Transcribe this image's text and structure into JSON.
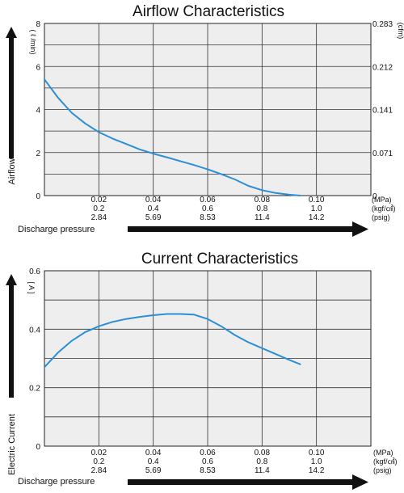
{
  "chart_data": [
    {
      "type": "line",
      "title": "Airflow Characteristics",
      "ylabel": "Airflow",
      "y_unit": "( ℓ /min)",
      "y2_unit": "(cfm)",
      "xlabel": "Discharge pressure",
      "xlim": [
        0,
        0.12
      ],
      "ylim": [
        0,
        8
      ],
      "grid": true,
      "x_ticks": [
        {
          "mpa": "0.02",
          "kgf": "0.2",
          "psig": "2.84"
        },
        {
          "mpa": "0.04",
          "kgf": "0.4",
          "psig": "5.69"
        },
        {
          "mpa": "0.06",
          "kgf": "0.6",
          "psig": "8.53"
        },
        {
          "mpa": "0.08",
          "kgf": "0.8",
          "psig": "11.4"
        },
        {
          "mpa": "0.10",
          "kgf": "1.0",
          "psig": "14.2"
        }
      ],
      "x_units": [
        "(MPa)",
        "(kgf/㎠)",
        "(psig)"
      ],
      "y_ticks": [
        "0",
        "2",
        "4",
        "6",
        "8"
      ],
      "y2_ticks": [
        "0",
        "0.071",
        "0.141",
        "0.212",
        "0.283"
      ],
      "series": [
        {
          "color": "#2b8fd6",
          "x": [
            0,
            0.005,
            0.01,
            0.015,
            0.02,
            0.025,
            0.03,
            0.035,
            0.04,
            0.045,
            0.05,
            0.055,
            0.06,
            0.065,
            0.07,
            0.075,
            0.08,
            0.085,
            0.09,
            0.094
          ],
          "y": [
            5.4,
            4.55,
            3.85,
            3.35,
            2.95,
            2.65,
            2.4,
            2.15,
            1.95,
            1.78,
            1.6,
            1.42,
            1.22,
            1.0,
            0.75,
            0.45,
            0.25,
            0.12,
            0.04,
            0.0
          ]
        }
      ]
    },
    {
      "type": "line",
      "title": "Current Characteristics",
      "ylabel": "Electric Current",
      "y_unit": "[ A ]",
      "xlabel": "Discharge pressure",
      "xlim": [
        0,
        0.12
      ],
      "ylim": [
        0,
        0.6
      ],
      "grid": true,
      "x_ticks": [
        {
          "mpa": "0.02",
          "kgf": "0.2",
          "psig": "2.84"
        },
        {
          "mpa": "0.04",
          "kgf": "0.4",
          "psig": "5.69"
        },
        {
          "mpa": "0.06",
          "kgf": "0.6",
          "psig": "8.53"
        },
        {
          "mpa": "0.08",
          "kgf": "0.8",
          "psig": "11.4"
        },
        {
          "mpa": "0.10",
          "kgf": "1.0",
          "psig": "14.2"
        }
      ],
      "x_units": [
        "(MPa)",
        "(kgf/㎠)",
        "(psig)"
      ],
      "y_ticks": [
        "0",
        "0.2",
        "0.4",
        "0.6"
      ],
      "series": [
        {
          "color": "#2b8fd6",
          "x": [
            0,
            0.005,
            0.01,
            0.015,
            0.02,
            0.025,
            0.03,
            0.035,
            0.04,
            0.045,
            0.05,
            0.055,
            0.06,
            0.065,
            0.07,
            0.075,
            0.08,
            0.085,
            0.09,
            0.094
          ],
          "y": [
            0.27,
            0.32,
            0.36,
            0.39,
            0.41,
            0.425,
            0.435,
            0.442,
            0.448,
            0.452,
            0.452,
            0.45,
            0.435,
            0.41,
            0.38,
            0.355,
            0.335,
            0.315,
            0.295,
            0.28
          ]
        }
      ]
    }
  ]
}
